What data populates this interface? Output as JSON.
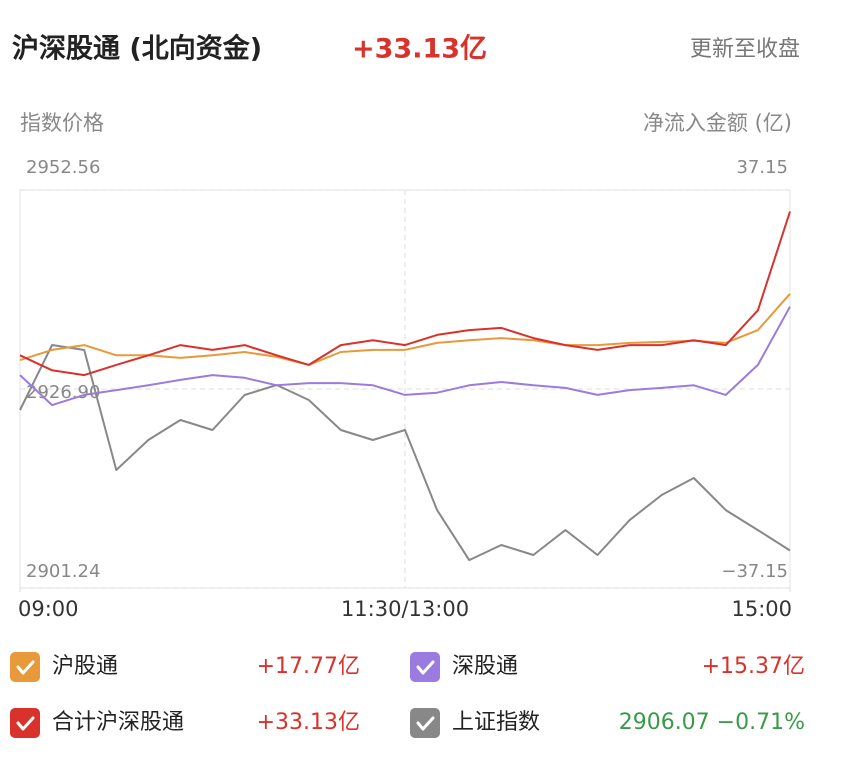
{
  "chart_data": {
    "type": "line",
    "title": "沪深股通 (北向资金)",
    "total": "+33.13亿",
    "status": "更新至收盘",
    "y_label": "指数价格",
    "y2_label": "净流入金额 (亿)",
    "x": [
      0,
      10,
      20,
      30,
      40,
      50,
      60,
      70,
      80,
      90,
      100,
      110,
      120,
      130,
      140,
      150,
      160,
      170,
      180,
      190,
      200,
      210,
      220,
      230,
      240
    ],
    "xlim": [
      0,
      240
    ],
    "xticks": [
      {
        "value": 0,
        "label": "09:00"
      },
      {
        "value": 120,
        "label": "11:30/13:00"
      },
      {
        "value": 240,
        "label": "15:00"
      }
    ],
    "ylim": [
      2901.24,
      2952.56
    ],
    "yticks": [
      2952.56,
      {
        "value": 2926.9,
        "label": "2926.90"
      },
      2901.24
    ],
    "y2lim": [
      -37.15,
      37.15
    ],
    "y2ticks": [
      37.15,
      {
        "value": -37.15,
        "label": "−37.15"
      }
    ],
    "series": [
      {
        "name": "沪股通",
        "color": "#e8993a",
        "axis": "y2",
        "latest": "+17.77亿",
        "latest_color": "#d9312b",
        "values": [
          5.4,
          7.3,
          8.2,
          6.3,
          6.3,
          5.8,
          6.3,
          6.9,
          6.0,
          4.5,
          6.9,
          7.3,
          7.3,
          8.6,
          9.1,
          9.5,
          9.1,
          8.2,
          8.2,
          8.6,
          8.8,
          9.0,
          8.6,
          11.0,
          17.77
        ]
      },
      {
        "name": "深股通",
        "color": "#9b7be0",
        "axis": "y2",
        "latest": "+15.37亿",
        "latest_color": "#d9312b",
        "values": [
          2.6,
          -3.0,
          -1.1,
          -0.2,
          0.7,
          1.7,
          2.6,
          2.1,
          0.7,
          1.1,
          1.1,
          0.7,
          -1.1,
          -0.7,
          0.7,
          1.3,
          0.7,
          0.2,
          -1.1,
          -0.2,
          0.2,
          0.7,
          -1.1,
          4.5,
          15.37
        ]
      },
      {
        "name": "合计沪深股通",
        "color": "#d9312b",
        "axis": "y2",
        "latest": "+33.13亿",
        "latest_color": "#d9312b",
        "values": [
          6.3,
          3.5,
          2.6,
          4.5,
          6.3,
          8.2,
          7.3,
          8.2,
          6.3,
          4.5,
          8.2,
          9.1,
          8.2,
          10.1,
          11.0,
          11.4,
          9.5,
          8.2,
          7.3,
          8.2,
          8.2,
          9.1,
          8.2,
          14.7,
          33.13
        ]
      },
      {
        "name": "上证指数",
        "color": "#888888",
        "axis": "y",
        "latest": "2906.07 −0.71%",
        "latest_color": "#3a9a4a",
        "values": [
          2924.19,
          2932.58,
          2931.93,
          2916.45,
          2920.32,
          2922.9,
          2921.61,
          2926.13,
          2927.42,
          2925.48,
          2921.61,
          2920.32,
          2921.61,
          2911.29,
          2904.84,
          2906.78,
          2905.49,
          2908.71,
          2905.49,
          2910.0,
          2913.23,
          2915.42,
          2911.29,
          2908.71,
          2906.07
        ]
      }
    ]
  }
}
